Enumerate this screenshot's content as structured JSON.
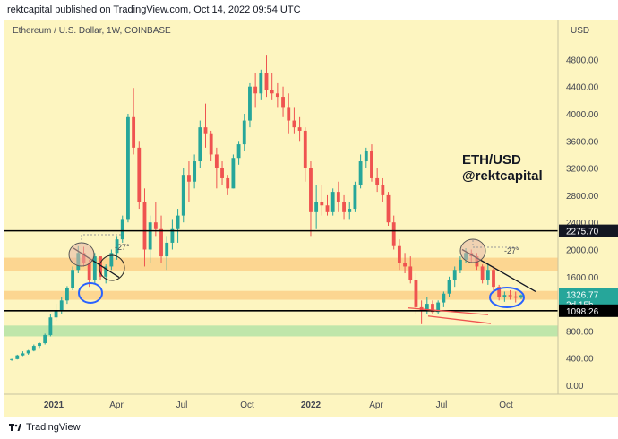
{
  "header": {
    "publish_line": "rektcapital published on TradingView.com, Oct 14, 2022 09:54 UTC"
  },
  "chart_title": "Ethereum / U.S. Dollar, 1W, COINBASE",
  "price_axis": {
    "currency": "USD",
    "ticks": [
      "4800.00",
      "4400.00",
      "4000.00",
      "3600.00",
      "3200.00",
      "2800.00",
      "2400.00",
      "2000.00",
      "1600.00",
      "1200.00",
      "800.00",
      "400.00",
      "0.00"
    ],
    "labels": {
      "resistance": "2275.70",
      "current_price": "1326.77",
      "countdown": "2d 15h",
      "support": "1098.26"
    }
  },
  "time_axis": {
    "ticks": [
      "2021",
      "Apr",
      "Jul",
      "Oct",
      "2022",
      "Apr",
      "Jul",
      "Oct"
    ]
  },
  "annotations": {
    "line1": "ETH/USD",
    "line2": "@rektcapital",
    "pct_left": "-27°",
    "pct_right": "-27°"
  },
  "footer": {
    "brand": "TradingView",
    "logo_icon": "tradingview-logo-icon"
  },
  "colors": {
    "background": "#fdf5c0",
    "up": "#26a69a",
    "down": "#ef5350",
    "zone_orange": "#fcd088",
    "zone_green": "#b4e3a6",
    "current_label": "#26a69a",
    "support_label": "#000000",
    "ellipse_blue": "#2962ff",
    "ellipse_pink": "#e5b4a6",
    "trendline_dark": "#131722",
    "trendline_red": "#ef5350"
  },
  "chart_data": {
    "type": "candlestick",
    "title": "Ethereum / U.S. Dollar, 1W, COINBASE",
    "ylabel": "USD",
    "ylim": [
      -80,
      5150
    ],
    "x_tick_labels": [
      "2021",
      "Apr",
      "Jul",
      "Oct",
      "2022",
      "Apr",
      "Jul",
      "Oct"
    ],
    "candles": [
      [
        380,
        390,
        360,
        385
      ],
      [
        385,
        450,
        380,
        440
      ],
      [
        440,
        500,
        430,
        470
      ],
      [
        470,
        520,
        450,
        510
      ],
      [
        510,
        600,
        500,
        580
      ],
      [
        580,
        630,
        550,
        620
      ],
      [
        620,
        760,
        600,
        740
      ],
      [
        740,
        1050,
        720,
        1000
      ],
      [
        1000,
        1200,
        950,
        1100
      ],
      [
        1100,
        1300,
        1050,
        1250
      ],
      [
        1250,
        1460,
        1200,
        1430
      ],
      [
        1430,
        1750,
        1400,
        1700
      ],
      [
        1700,
        2050,
        1650,
        1950
      ],
      [
        1950,
        2040,
        1750,
        1800
      ],
      [
        1800,
        1850,
        1450,
        1550
      ],
      [
        1550,
        1950,
        1500,
        1900
      ],
      [
        1900,
        1850,
        1550,
        1600
      ],
      [
        1600,
        1780,
        1500,
        1750
      ],
      [
        1750,
        2000,
        1700,
        1950
      ],
      [
        1950,
        2200,
        1850,
        2150
      ],
      [
        2150,
        2500,
        2100,
        2450
      ],
      [
        2450,
        4000,
        2400,
        3950
      ],
      [
        3950,
        4380,
        3400,
        3500
      ],
      [
        3500,
        3600,
        2600,
        2700
      ],
      [
        2700,
        2900,
        1750,
        2000
      ],
      [
        2000,
        2500,
        1800,
        2400
      ],
      [
        2400,
        2700,
        2200,
        2300
      ],
      [
        2300,
        2500,
        1800,
        1900
      ],
      [
        1900,
        2200,
        1700,
        2100
      ],
      [
        2100,
        2450,
        2000,
        2300
      ],
      [
        2300,
        2600,
        2100,
        2500
      ],
      [
        2500,
        3200,
        2400,
        3100
      ],
      [
        3100,
        3300,
        2700,
        3000
      ],
      [
        3000,
        3400,
        2900,
        3300
      ],
      [
        3300,
        3900,
        3200,
        3800
      ],
      [
        3800,
        4150,
        3500,
        3700
      ],
      [
        3700,
        3750,
        3300,
        3400
      ],
      [
        3400,
        3500,
        2900,
        3200
      ],
      [
        3200,
        3300,
        2950,
        3050
      ],
      [
        3050,
        3100,
        2800,
        2900
      ],
      [
        2900,
        3400,
        2900,
        3350
      ],
      [
        3350,
        3600,
        3250,
        3550
      ],
      [
        3550,
        4000,
        3450,
        3900
      ],
      [
        3900,
        4450,
        3800,
        4400
      ],
      [
        4400,
        4600,
        4100,
        4300
      ],
      [
        4300,
        4650,
        4200,
        4600
      ],
      [
        4600,
        4870,
        4250,
        4350
      ],
      [
        4350,
        4600,
        4200,
        4300
      ],
      [
        4300,
        4450,
        4100,
        4250
      ],
      [
        4250,
        4400,
        3950,
        4100
      ],
      [
        4100,
        4300,
        3700,
        3900
      ],
      [
        3900,
        4100,
        3700,
        3800
      ],
      [
        3800,
        3950,
        3600,
        3750
      ],
      [
        3750,
        3800,
        3000,
        3200
      ],
      [
        3200,
        3300,
        2200,
        2550
      ],
      [
        2550,
        2950,
        2300,
        2700
      ],
      [
        2700,
        2950,
        2500,
        2650
      ],
      [
        2650,
        2800,
        2500,
        2550
      ],
      [
        2550,
        2900,
        2500,
        2850
      ],
      [
        2850,
        3000,
        2550,
        2700
      ],
      [
        2700,
        2800,
        2450,
        2550
      ],
      [
        2550,
        2700,
        2450,
        2600
      ],
      [
        2600,
        3000,
        2550,
        2950
      ],
      [
        2950,
        3400,
        2900,
        3300
      ],
      [
        3300,
        3500,
        3200,
        3450
      ],
      [
        3450,
        3550,
        3000,
        3050
      ],
      [
        3050,
        3200,
        2850,
        2950
      ],
      [
        2950,
        3050,
        2700,
        2800
      ],
      [
        2800,
        2850,
        2350,
        2400
      ],
      [
        2400,
        2500,
        2000,
        2050
      ],
      [
        2050,
        2150,
        1700,
        1800
      ],
      [
        1800,
        1950,
        1650,
        1750
      ],
      [
        1750,
        1900,
        1500,
        1550
      ],
      [
        1550,
        1650,
        1050,
        1150
      ],
      [
        1150,
        1250,
        900,
        1100
      ],
      [
        1100,
        1300,
        1050,
        1200
      ],
      [
        1200,
        1250,
        1050,
        1080
      ],
      [
        1080,
        1250,
        1050,
        1220
      ],
      [
        1220,
        1380,
        1150,
        1350
      ],
      [
        1350,
        1600,
        1300,
        1550
      ],
      [
        1550,
        1750,
        1450,
        1700
      ],
      [
        1700,
        1900,
        1650,
        1850
      ],
      [
        1850,
        2020,
        1800,
        1950
      ],
      [
        1950,
        2000,
        1800,
        1900
      ],
      [
        1900,
        1950,
        1700,
        1750
      ],
      [
        1750,
        1780,
        1500,
        1550
      ],
      [
        1550,
        1800,
        1480,
        1700
      ],
      [
        1700,
        1750,
        1400,
        1450
      ],
      [
        1450,
        1480,
        1250,
        1300
      ],
      [
        1300,
        1380,
        1230,
        1330
      ],
      [
        1330,
        1400,
        1260,
        1310
      ],
      [
        1310,
        1380,
        1220,
        1290
      ],
      [
        1290,
        1340,
        1270,
        1327
      ]
    ],
    "horizontal_levels": [
      2275.7,
      1098.26
    ],
    "zones": [
      {
        "from": 1680,
        "to": 1880,
        "color": "orange"
      },
      {
        "from": 1260,
        "to": 1390,
        "color": "orange"
      },
      {
        "from": 720,
        "to": 880,
        "color": "green"
      }
    ],
    "current_price": 1326.77
  }
}
